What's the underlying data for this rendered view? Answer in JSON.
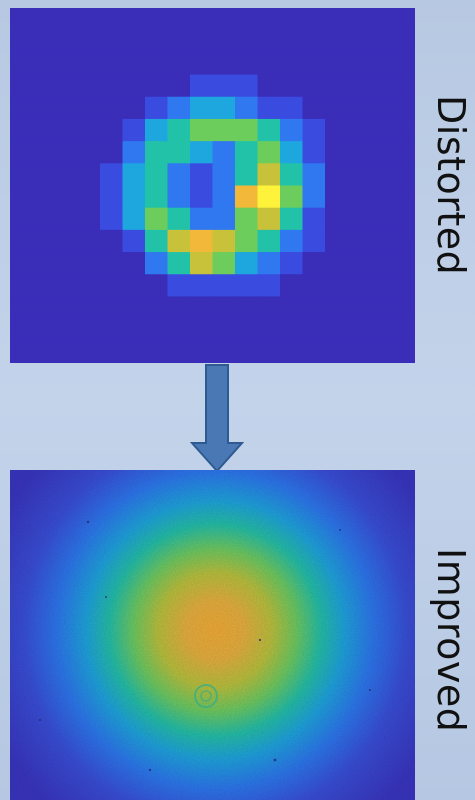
{
  "labels": {
    "top": "Distorted",
    "bottom": "Improved"
  },
  "icons": {
    "transition": "down-arrow-icon"
  },
  "colors": {
    "background": "#bccde6",
    "arrow_fill": "#4a78b4",
    "arrow_stroke": "#2f5a91",
    "label_text": "#111111",
    "colormap": [
      "#3a2db8",
      "#3a4be0",
      "#2f78f0",
      "#1ea6df",
      "#22c2a8",
      "#6ccd5c",
      "#c7c23a",
      "#f2b83a",
      "#fef33a"
    ]
  }
}
